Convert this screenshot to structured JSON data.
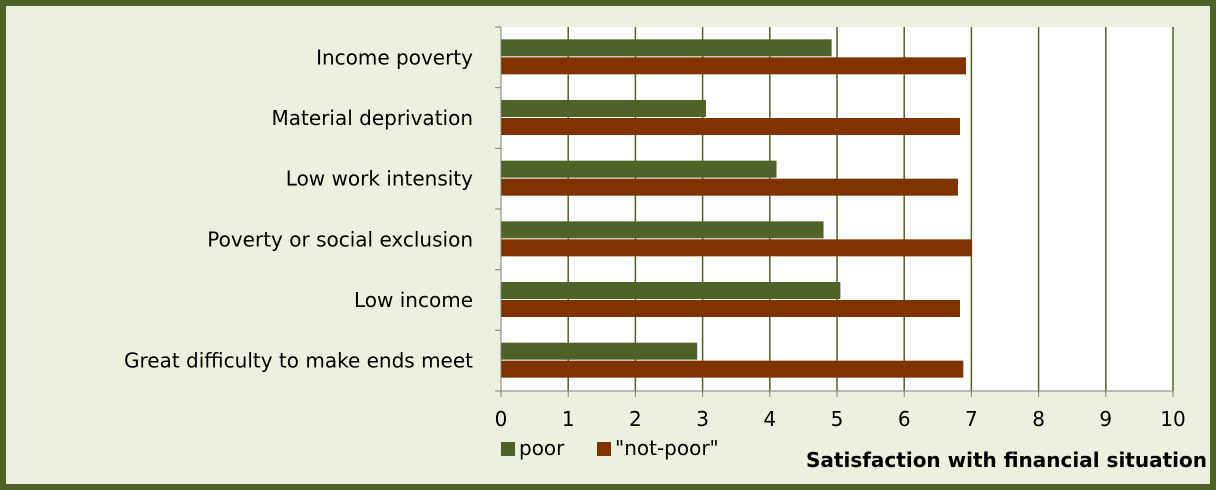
{
  "chart_data": {
    "type": "bar",
    "orientation": "horizontal",
    "categories": [
      "Income poverty",
      "Material deprivation",
      "Low work intensity",
      "Poverty or social exclusion",
      "Low income",
      "Great difficulty to make ends meet"
    ],
    "series": [
      {
        "name": "poor",
        "color": "#4f6228",
        "values": [
          4.92,
          3.05,
          4.1,
          4.8,
          5.05,
          2.92
        ]
      },
      {
        "name": "\"not-poor\"",
        "color": "#7f3300",
        "values": [
          6.92,
          6.83,
          6.8,
          7.0,
          6.83,
          6.88
        ]
      }
    ],
    "xlim": [
      0,
      10
    ],
    "xticks": [
      "0",
      "1",
      "2",
      "3",
      "4",
      "5",
      "6",
      "7",
      "8",
      "9",
      "10"
    ],
    "xlabel": "Satisfaction with financial situation",
    "ylabel": "",
    "title": "",
    "grid": "vertical",
    "legend": "bottom-left"
  }
}
